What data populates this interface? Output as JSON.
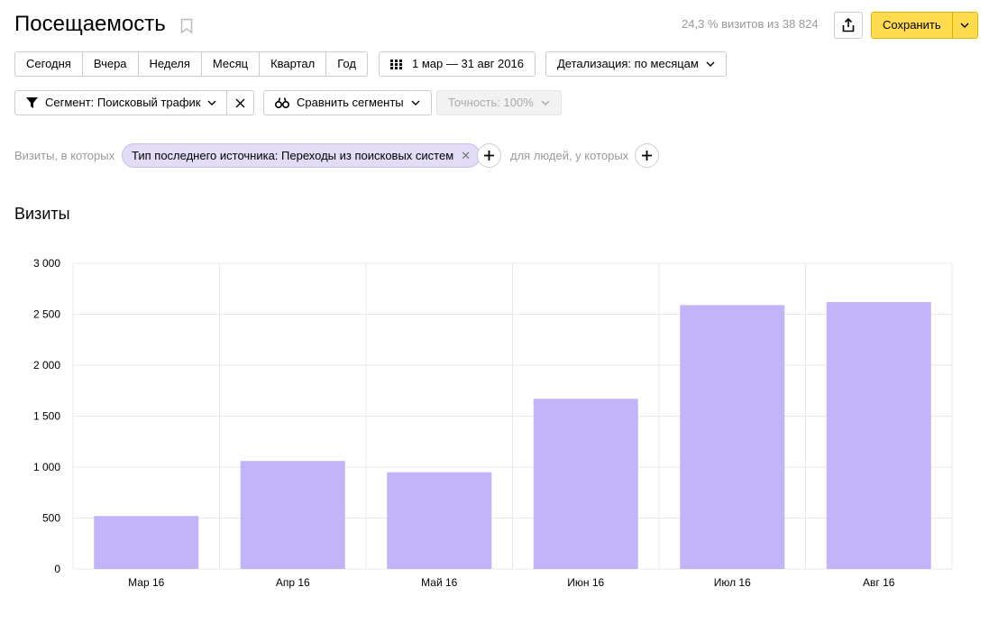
{
  "header": {
    "title": "Посещаемость",
    "summary": "24,3 % визитов из 38 824",
    "save_label": "Сохранить"
  },
  "periods": [
    "Сегодня",
    "Вчера",
    "Неделя",
    "Месяц",
    "Квартал",
    "Год"
  ],
  "toolbar": {
    "date_range": "1 мар — 31 авг 2016",
    "detail": "Детализация: по месяцам",
    "segment": "Сегмент: Поисковый трафик",
    "compare": "Сравнить сегменты",
    "precision": "Точность: 100%"
  },
  "filters": {
    "visits_label": "Визиты, в которых",
    "chip": "Тип последнего источника: Переходы из поисковых систем",
    "people_label": "для людей, у которых"
  },
  "chart_heading": "Визиты",
  "chart_data": {
    "type": "bar",
    "title": "Визиты",
    "categories": [
      "Мар 16",
      "Апр 16",
      "Май 16",
      "Июн 16",
      "Июл 16",
      "Авг 16"
    ],
    "values": [
      520,
      1060,
      950,
      1670,
      2590,
      2620
    ],
    "ylim": [
      0,
      3000
    ],
    "yticks": [
      0,
      500,
      1000,
      1500,
      2000,
      2500,
      3000
    ],
    "ytick_labels": [
      "0",
      "500",
      "1 000",
      "1 500",
      "2 000",
      "2 500",
      "3 000"
    ],
    "grid": true,
    "bar_color": "#c3b3f8",
    "grid_color": "#e8e8e8"
  },
  "colors": {
    "accent": "#ffdb4d",
    "chip_bg": "#e3dcf7"
  }
}
